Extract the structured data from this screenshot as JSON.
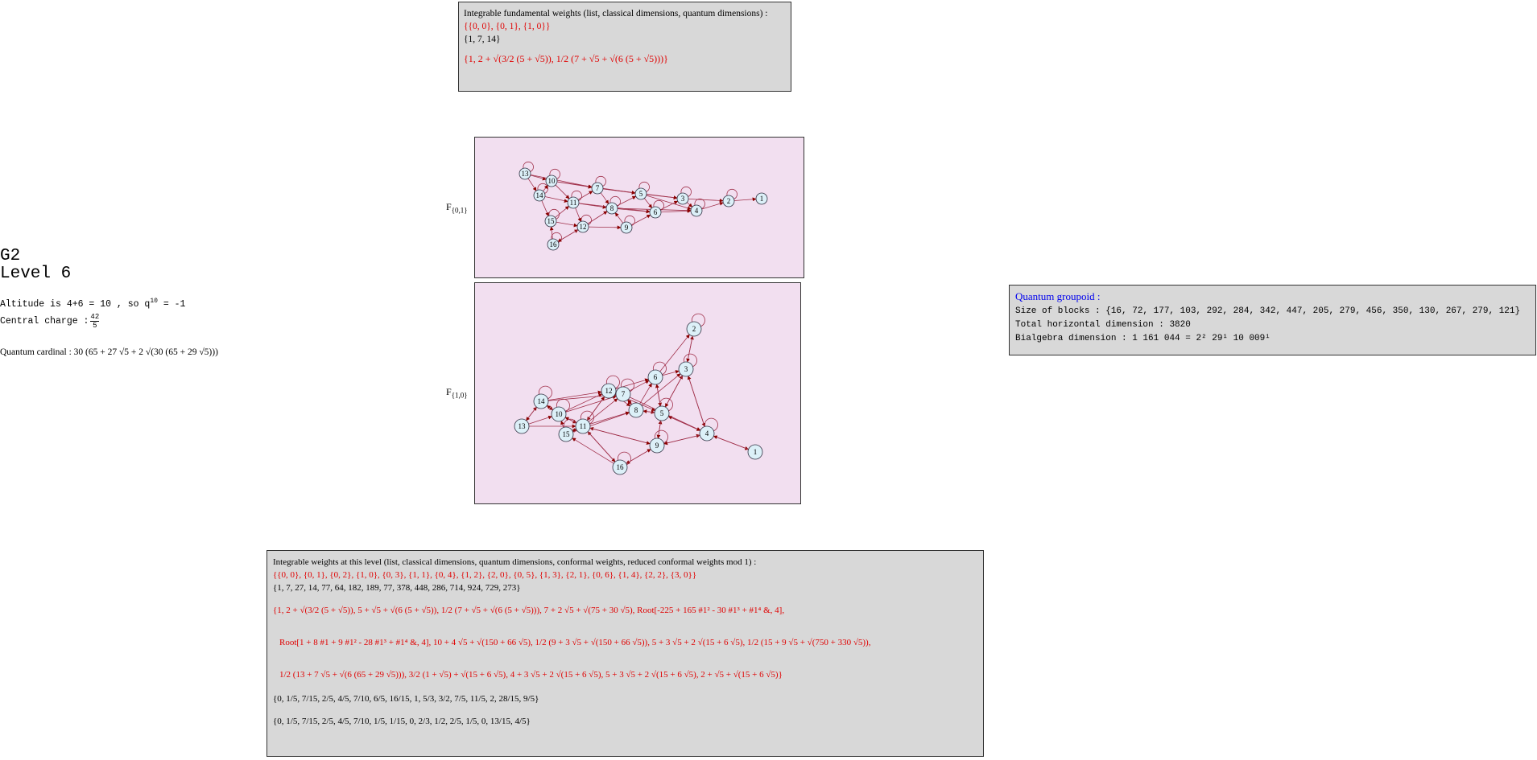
{
  "top_box": {
    "header": "Integrable fundamental weights (list, classical dimensions, quantum dimensions) :",
    "weights": "{{0, 0}, {0, 1}, {1, 0}}",
    "classical_dims": "{1, 7, 14}",
    "quantum_dims": "{1, 2 + √(3/2 (5 + √5)), 1/2 (7 + √5 + √(6 (5 + √5)))}"
  },
  "left_panel": {
    "title": "G2",
    "level": "Level 6",
    "altitude_text": "Altitude is 4+6 = 10 , so q",
    "altitude_exp": "10",
    "altitude_rhs": " = -1",
    "central_charge_label": "Central charge : ",
    "central_charge_num": "42",
    "central_charge_den": "5",
    "quantum_cardinal_label": "Quantum cardinal : ",
    "quantum_cardinal_value": "30 (65 + 27 √5 + 2 √(30 (65 + 29 √5)))"
  },
  "graphs": [
    {
      "label": "F",
      "sub": "{0,1}"
    },
    {
      "label": "F",
      "sub": "{1,0}"
    }
  ],
  "groupoid_box": {
    "title": "Quantum groupoid :",
    "blocks_label": "Size of blocks : ",
    "blocks_value": "{16, 72, 177, 103, 292, 284, 342, 447, 205, 279, 456, 350, 130, 267, 279, 121}",
    "total_label": "Total horizontal dimension : ",
    "total_value": "3820",
    "bialgebra_label": "Bialgebra dimension : ",
    "bialgebra_value": "1 161 044 = 2² 29¹ 10 009¹"
  },
  "bottom_box": {
    "header": "Integrable weights at this level (list, classical dimensions, quantum dimensions, conformal weights, reduced conformal weights mod 1) :",
    "weights": "{{0, 0}, {0, 1}, {0, 2}, {1, 0}, {0, 3}, {1, 1}, {0, 4}, {1, 2}, {2, 0}, {0, 5}, {1, 3}, {2, 1}, {0, 6}, {1, 4}, {2, 2}, {3, 0}}",
    "classical_dims": "{1, 7, 27, 14, 77, 64, 182, 189, 77, 378, 448, 286, 714, 924, 729, 273}",
    "qd_line1": "{1, 2 + √(3/2 (5 + √5)), 5 + √5 + √(6 (5 + √5)), 1/2 (7 + √5 + √(6 (5 + √5))), 7 + 2 √5 + √(75 + 30 √5), Root[-225 + 165 #1² - 30 #1³ + #1⁴ &, 4],",
    "qd_line2": "Root[1 + 8 #1 + 9 #1² - 28 #1³ + #1⁴ &, 4], 10 + 4 √5 + √(150 + 66 √5), 1/2 (9 + 3 √5 + √(150 + 66 √5)), 5 + 3 √5 + 2 √(15 + 6 √5), 1/2 (15 + 9 √5 + √(750 + 330 √5)),",
    "qd_line3": "1/2 (13 + 7 √5 + √(6 (65 + 29 √5))), 3/2 (1 + √5) + √(15 + 6 √5), 4 + 3 √5 + 2 √(15 + 6 √5), 5 + 3 √5 + 2 √(15 + 6 √5), 2 + √5 + √(15 + 6 √5)}",
    "conformal": "{0, 1/5, 7/15, 2/5, 4/5, 7/10, 6/5, 16/15, 1, 5/3, 3/2, 7/5, 11/5, 2, 28/15, 9/5}",
    "reduced": "{0, 1/5, 7/15, 2/5, 4/5, 7/10, 1/5, 1/15, 0, 2/3, 1/2, 2/5, 1/5, 0, 13/15, 4/5}"
  }
}
